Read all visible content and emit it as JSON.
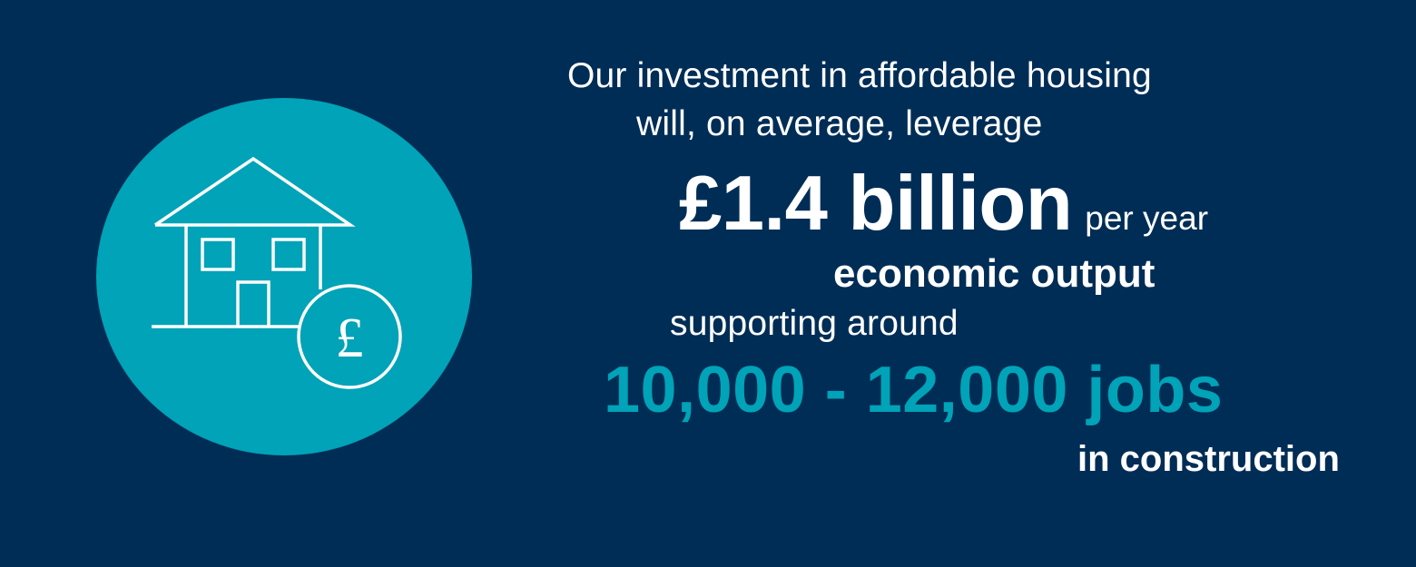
{
  "colors": {
    "background": "#002d56",
    "accent": "#00a3b7",
    "text": "#ffffff"
  },
  "icon": {
    "name": "house-with-pound-icon"
  },
  "text": {
    "line1": "Our investment in affordable housing",
    "line2": "will, on average, leverage",
    "amount": "£1.4 billion",
    "per_year": "per year",
    "economic_output": "economic output",
    "supporting": "supporting around",
    "jobs": "10,000 - 12,000 jobs",
    "in_construction": "in construction"
  }
}
